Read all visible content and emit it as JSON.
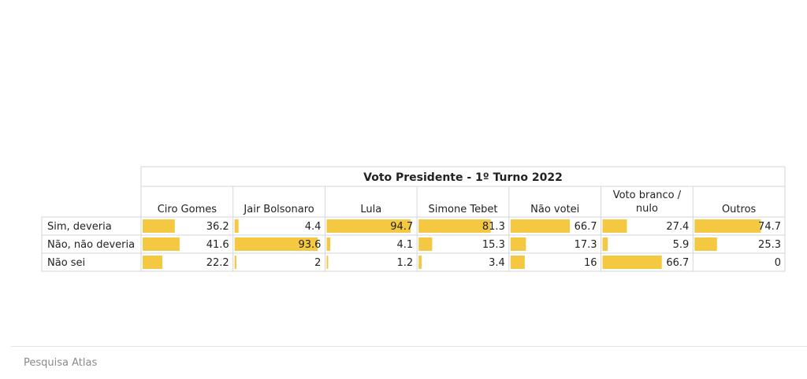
{
  "chart_data": {
    "type": "table",
    "header_group": "Voto Presidente - 1º Turno 2022",
    "columns": [
      "Ciro Gomes",
      "Jair Bolsonaro",
      "Lula",
      "Simone Tebet",
      "Não votei",
      "Voto branco / nulo",
      "Outros"
    ],
    "column_lines": [
      [
        "Ciro Gomes"
      ],
      [
        "Jair Bolsonaro"
      ],
      [
        "Lula"
      ],
      [
        "Simone Tebet"
      ],
      [
        "Não votei"
      ],
      [
        "Voto branco /",
        "nulo"
      ],
      [
        "Outros"
      ]
    ],
    "rows": [
      {
        "label": "Sim, deveria",
        "values": [
          36.2,
          4.4,
          94.7,
          81.3,
          66.7,
          27.4,
          74.7
        ]
      },
      {
        "label": "Não, não deveria",
        "values": [
          41.6,
          93.6,
          4.1,
          15.3,
          17.3,
          5.9,
          25.3
        ]
      },
      {
        "label": "Não sei",
        "values": [
          22.2,
          2,
          1.2,
          3.4,
          16,
          66.7,
          0
        ]
      }
    ],
    "bar_max": 100,
    "bar_color": "#f5c842"
  },
  "footer": {
    "source": "Pesquisa Atlas"
  }
}
